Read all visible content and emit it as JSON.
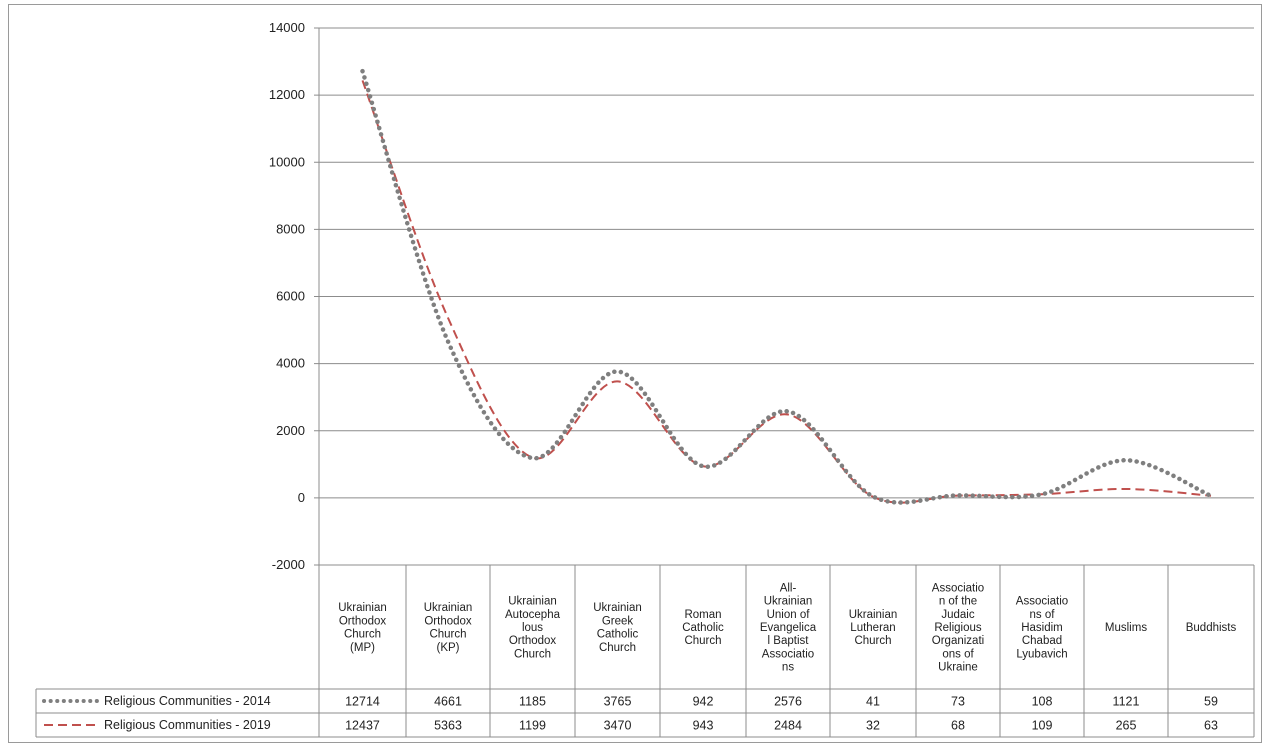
{
  "chart_data": {
    "type": "line",
    "ylim": [
      -2000,
      14000
    ],
    "yticks": [
      "-2000",
      "0",
      "2000",
      "4000",
      "6000",
      "8000",
      "10000",
      "12000",
      "14000"
    ],
    "grid": true,
    "legend": "table-left",
    "categories": [
      "Ukrainian Orthodox Church (MP)",
      "Ukrainian Orthodox Church (KP)",
      "Ukrainian Autocephalous Orthodox Church",
      "Ukrainian Greek Catholic Church",
      "Roman Catholic Church",
      "All-Ukrainian Union of Evangelical Baptist Associations",
      "Ukrainian Lutheran Church",
      "Association of the Judaic Religious Organizations of Ukraine",
      "Associations of Hasidim Chabad Lyubavich",
      "Muslims",
      "Buddhists"
    ],
    "category_lines": [
      [
        "Ukrainian",
        "Orthodox",
        "Church",
        "(MP)"
      ],
      [
        "Ukrainian",
        "Orthodox",
        "Church",
        "(KP)"
      ],
      [
        "Ukrainian",
        "Autocepha",
        "lous",
        "Orthodox",
        "Church"
      ],
      [
        "Ukrainian",
        "Greek",
        "Catholic",
        "Church"
      ],
      [
        "Roman",
        "Catholic",
        "Church"
      ],
      [
        "All-",
        "Ukrainian",
        "Union of",
        "Evangelica",
        "l Baptist",
        "Associatio",
        "ns"
      ],
      [
        "Ukrainian",
        "Lutheran",
        "Church"
      ],
      [
        "Associatio",
        "n of the",
        "Judaic",
        "Religious",
        "Organizati",
        "ons of",
        "Ukraine"
      ],
      [
        "Associatio",
        "ns of",
        "Hasidim",
        "Chabad",
        "Lyubavich"
      ],
      [
        "Muslims"
      ],
      [
        "Buddhists"
      ]
    ],
    "series": [
      {
        "name": "Religious Communities - 2014",
        "color": "#7f7f7f",
        "style": "dotted",
        "values": [
          12714,
          4661,
          1185,
          3765,
          942,
          2576,
          41,
          73,
          108,
          1121,
          59
        ]
      },
      {
        "name": "Religious Communities - 2019",
        "color": "#c0504d",
        "style": "dashed",
        "values": [
          12437,
          5363,
          1199,
          3470,
          943,
          2484,
          32,
          68,
          109,
          265,
          63
        ]
      }
    ]
  }
}
